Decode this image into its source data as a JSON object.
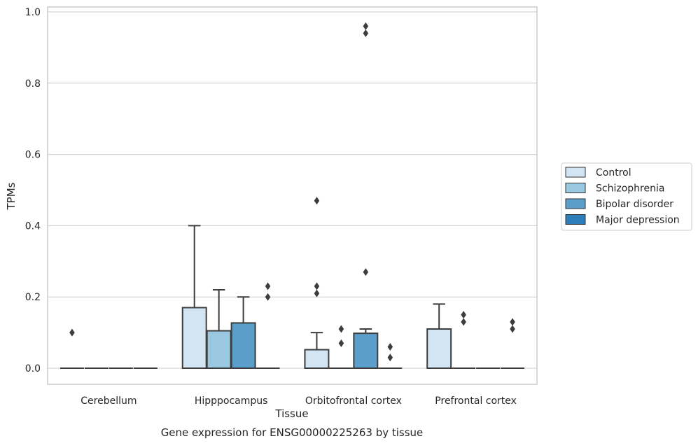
{
  "chart_data": {
    "type": "box",
    "xlabel": "Tissue",
    "ylabel": "TPMs",
    "caption": "Gene expression for ENSG00000225263 by tissue",
    "ylim": [
      -0.045,
      1.01
    ],
    "yticks": [
      "0.0",
      "0.2",
      "0.4",
      "0.6",
      "0.8",
      "1.0"
    ],
    "grid": true,
    "legend_position": "right-outside",
    "categories": [
      "Cerebellum",
      "Hipppocampus",
      "Orbitofrontal cortex",
      "Prefrontal cortex"
    ],
    "series": [
      {
        "name": "Control",
        "color": "#d3e4f3",
        "boxes": [
          {
            "q1": 0,
            "median": 0,
            "q3": 0,
            "whisker_low": 0,
            "whisker_high": 0,
            "outliers": [
              0.1
            ]
          },
          {
            "q1": 0,
            "median": 0,
            "q3": 0.17,
            "whisker_low": 0,
            "whisker_high": 0.4,
            "outliers": []
          },
          {
            "q1": 0,
            "median": 0,
            "q3": 0.052,
            "whisker_low": 0,
            "whisker_high": 0.1,
            "outliers": [
              0.21,
              0.23,
              0.47
            ]
          },
          {
            "q1": 0,
            "median": 0,
            "q3": 0.11,
            "whisker_low": 0,
            "whisker_high": 0.18,
            "outliers": []
          }
        ]
      },
      {
        "name": "Schizophrenia",
        "color": "#9ac8e0",
        "boxes": [
          {
            "q1": 0,
            "median": 0,
            "q3": 0,
            "whisker_low": 0,
            "whisker_high": 0,
            "outliers": []
          },
          {
            "q1": 0,
            "median": 0,
            "q3": 0.105,
            "whisker_low": 0,
            "whisker_high": 0.22,
            "outliers": []
          },
          {
            "q1": 0,
            "median": 0,
            "q3": 0,
            "whisker_low": 0,
            "whisker_high": 0,
            "outliers": [
              0.07,
              0.11
            ]
          },
          {
            "q1": 0,
            "median": 0,
            "q3": 0,
            "whisker_low": 0,
            "whisker_high": 0,
            "outliers": [
              0.13,
              0.15
            ]
          }
        ]
      },
      {
        "name": "Bipolar disorder",
        "color": "#5a9ec9",
        "boxes": [
          {
            "q1": 0,
            "median": 0,
            "q3": 0,
            "whisker_low": 0,
            "whisker_high": 0,
            "outliers": []
          },
          {
            "q1": 0,
            "median": 0,
            "q3": 0.127,
            "whisker_low": 0,
            "whisker_high": 0.2,
            "outliers": []
          },
          {
            "q1": 0,
            "median": 0,
            "q3": 0.098,
            "whisker_low": 0,
            "whisker_high": 0.11,
            "outliers": [
              0.27,
              0.94,
              0.96
            ]
          },
          {
            "q1": 0,
            "median": 0,
            "q3": 0,
            "whisker_low": 0,
            "whisker_high": 0,
            "outliers": []
          }
        ]
      },
      {
        "name": "Major depression",
        "color": "#2d7dbb",
        "boxes": [
          {
            "q1": 0,
            "median": 0,
            "q3": 0,
            "whisker_low": 0,
            "whisker_high": 0,
            "outliers": []
          },
          {
            "q1": 0,
            "median": 0,
            "q3": 0,
            "whisker_low": 0,
            "whisker_high": 0,
            "outliers": [
              0.2,
              0.23
            ]
          },
          {
            "q1": 0,
            "median": 0,
            "q3": 0,
            "whisker_low": 0,
            "whisker_high": 0,
            "outliers": [
              0.03,
              0.06
            ]
          },
          {
            "q1": 0,
            "median": 0,
            "q3": 0,
            "whisker_low": 0,
            "whisker_high": 0,
            "outliers": [
              0.11,
              0.13
            ]
          }
        ]
      }
    ]
  }
}
